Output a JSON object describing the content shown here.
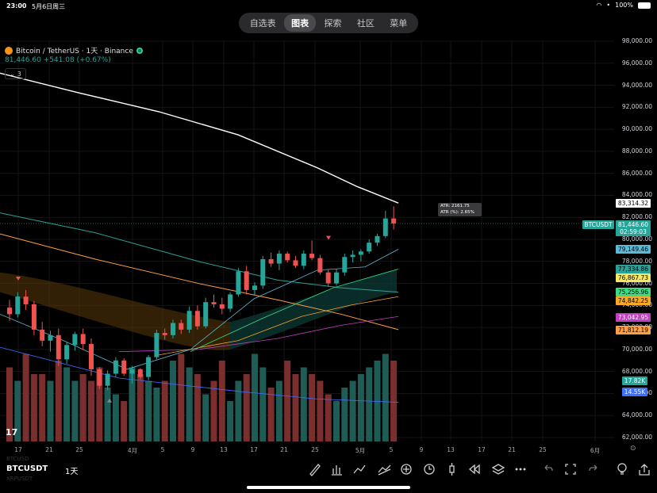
{
  "status_bar": {
    "time": "23:00",
    "date": "5月6日周三",
    "battery": "100%"
  },
  "top_nav": {
    "tabs": [
      "自选表",
      "图表",
      "探索",
      "社区",
      "菜单"
    ],
    "active": "图表"
  },
  "header": {
    "symbol": "Bitcoin / TetherUS · 1天 · Binance",
    "price_change": "81,446.60 +541.08 (+0.67%)",
    "collapse_count": "3"
  },
  "atr_tooltip": {
    "line1": "ATR: 2161.75",
    "line2": "ATR (%): 2.65%"
  },
  "price_axis": [
    "98,000.00",
    "96,000.00",
    "94,000.00",
    "92,000.00",
    "90,000.00",
    "88,000.00",
    "86,000.00",
    "84,000.00",
    "82,000.00",
    "80,000.00",
    "78,000.00",
    "76,000.00",
    "74,000.00",
    "72,000.00",
    "70,000.00",
    "68,000.00",
    "66,000.00",
    "64,000.00",
    "62,000.00"
  ],
  "price_tags": {
    "ma200": {
      "text": "83,314.32",
      "color": "#ffffff"
    },
    "symbol_tag": {
      "text": "BTCUSDT",
      "color": "#26a69a"
    },
    "last": {
      "text": "81,446.60",
      "color": "#26a69a"
    },
    "countdown": {
      "text": "02:59:03",
      "color": "#26a69a"
    },
    "t1": {
      "text": "79,149.46",
      "color": "#5bb9d6"
    },
    "t2": {
      "text": "77,334.86",
      "color": "#2aa198"
    },
    "t3": {
      "text": "76,867.73",
      "color": "#f5e663"
    },
    "t4": {
      "text": "75,256.96",
      "color": "#3ddc84"
    },
    "t5": {
      "text": "74,842.25",
      "color": "#f9a825"
    },
    "t6": {
      "text": "73,042.95",
      "color": "#c040c0"
    },
    "t7": {
      "text": "71,812.19",
      "color": "#ff9f43"
    },
    "v1": {
      "text": "17.82K",
      "color": "#26a69a"
    },
    "v2": {
      "text": "14.55K",
      "color": "#3f6fff"
    }
  },
  "x_axis": [
    "17",
    "21",
    "25",
    "4月",
    "5",
    "9",
    "13",
    "17",
    "21",
    "25",
    "5月",
    "5",
    "9",
    "13",
    "17",
    "21",
    "25",
    "6月"
  ],
  "toolbar": {
    "ticker": "BTCUSDT",
    "interval": "1天",
    "ghost_above": "BTCUSD",
    "ghost_below": "XRPUSDT",
    "tools": [
      "pencil-icon",
      "bar-chart-icon",
      "line-chart-icon",
      "trend-icon",
      "add-icon",
      "alarm-icon",
      "candle-icon",
      "replay-icon",
      "layers-icon",
      "more-icon",
      "undo-icon",
      "fullscreen-icon",
      "redo-icon",
      "idea-icon",
      "share-icon"
    ]
  },
  "tv_logo": "17",
  "chart_data": {
    "type": "candlestick",
    "x": [
      "17",
      "21",
      "25",
      "4月",
      "5",
      "9",
      "13",
      "17",
      "21",
      "25",
      "5月",
      "5"
    ],
    "ohlc_candles": 48,
    "ylim": [
      62000,
      98000
    ],
    "series": [
      {
        "name": "ma200",
        "color": "#ffffff"
      },
      {
        "name": "ma_green",
        "color": "#2aa198"
      },
      {
        "name": "ma_orange",
        "color": "#ff9f43"
      }
    ]
  }
}
